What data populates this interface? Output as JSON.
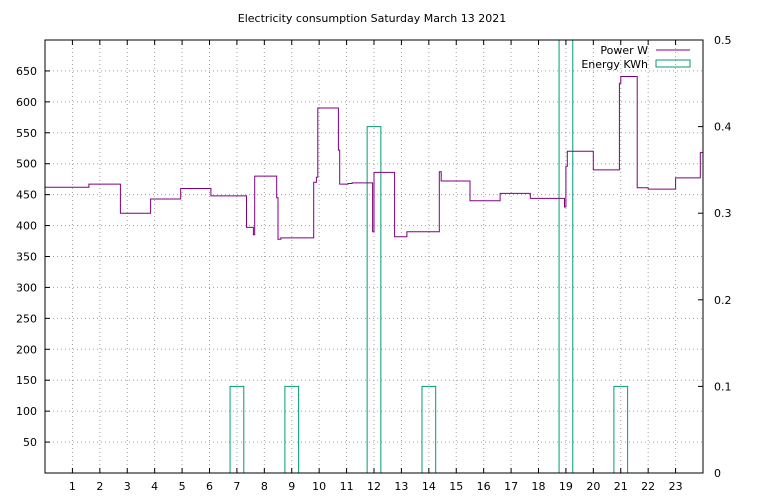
{
  "chart_data": {
    "type": "line",
    "title": "Electricity consumption Saturday March 13 2021",
    "xlabel": "",
    "ylabel": "",
    "y2label": "",
    "xlim": [
      0,
      24
    ],
    "ylim": [
      0,
      700
    ],
    "y2lim": [
      0,
      0.5
    ],
    "grid": true,
    "legend_position": "top-right",
    "xticks": [
      1,
      2,
      3,
      4,
      5,
      6,
      7,
      8,
      9,
      10,
      11,
      12,
      13,
      14,
      15,
      16,
      17,
      18,
      19,
      20,
      21,
      22,
      23
    ],
    "yticks": [
      50,
      100,
      150,
      200,
      250,
      300,
      350,
      400,
      450,
      500,
      550,
      600,
      650
    ],
    "y2ticks": [
      "0",
      "0.1",
      "0.2",
      "0.3",
      "0.4",
      "0.5"
    ],
    "colors": {
      "power": "#800080",
      "energy": "#009e73",
      "grid": "#a0a0a0"
    },
    "series": [
      {
        "name": "Power W",
        "axis": "left",
        "style": "step",
        "points": [
          [
            0,
            462
          ],
          [
            1.6,
            467
          ],
          [
            2.75,
            420
          ],
          [
            3.85,
            443
          ],
          [
            4.95,
            460
          ],
          [
            6.05,
            448
          ],
          [
            7.35,
            397
          ],
          [
            7.6,
            385
          ],
          [
            7.65,
            480
          ],
          [
            8.45,
            445
          ],
          [
            8.5,
            378
          ],
          [
            8.6,
            380
          ],
          [
            9.8,
            470
          ],
          [
            9.9,
            478
          ],
          [
            9.95,
            590
          ],
          [
            10.7,
            522
          ],
          [
            10.75,
            467
          ],
          [
            11.05,
            468
          ],
          [
            11.2,
            469
          ],
          [
            11.95,
            390
          ],
          [
            12.0,
            486
          ],
          [
            12.75,
            382
          ],
          [
            13.2,
            390
          ],
          [
            14.38,
            487
          ],
          [
            14.45,
            472
          ],
          [
            15.5,
            440
          ],
          [
            16.6,
            452
          ],
          [
            17.7,
            444
          ],
          [
            18.95,
            430
          ],
          [
            19.0,
            496
          ],
          [
            19.05,
            520
          ],
          [
            20.0,
            490
          ],
          [
            20.95,
            630
          ],
          [
            21.0,
            641
          ],
          [
            21.6,
            461
          ],
          [
            22.0,
            459
          ],
          [
            23.0,
            477
          ],
          [
            23.9,
            518
          ],
          [
            24.0,
            518
          ]
        ]
      },
      {
        "name": "Energy KWh",
        "axis": "right",
        "style": "boxes",
        "boxes": [
          [
            6.75,
            7.25,
            0.1
          ],
          [
            8.75,
            9.25,
            0.1
          ],
          [
            11.75,
            12.25,
            0.4
          ],
          [
            13.75,
            14.25,
            0.1
          ],
          [
            18.75,
            19.25,
            0.5
          ],
          [
            20.75,
            21.25,
            0.1
          ]
        ]
      }
    ]
  }
}
